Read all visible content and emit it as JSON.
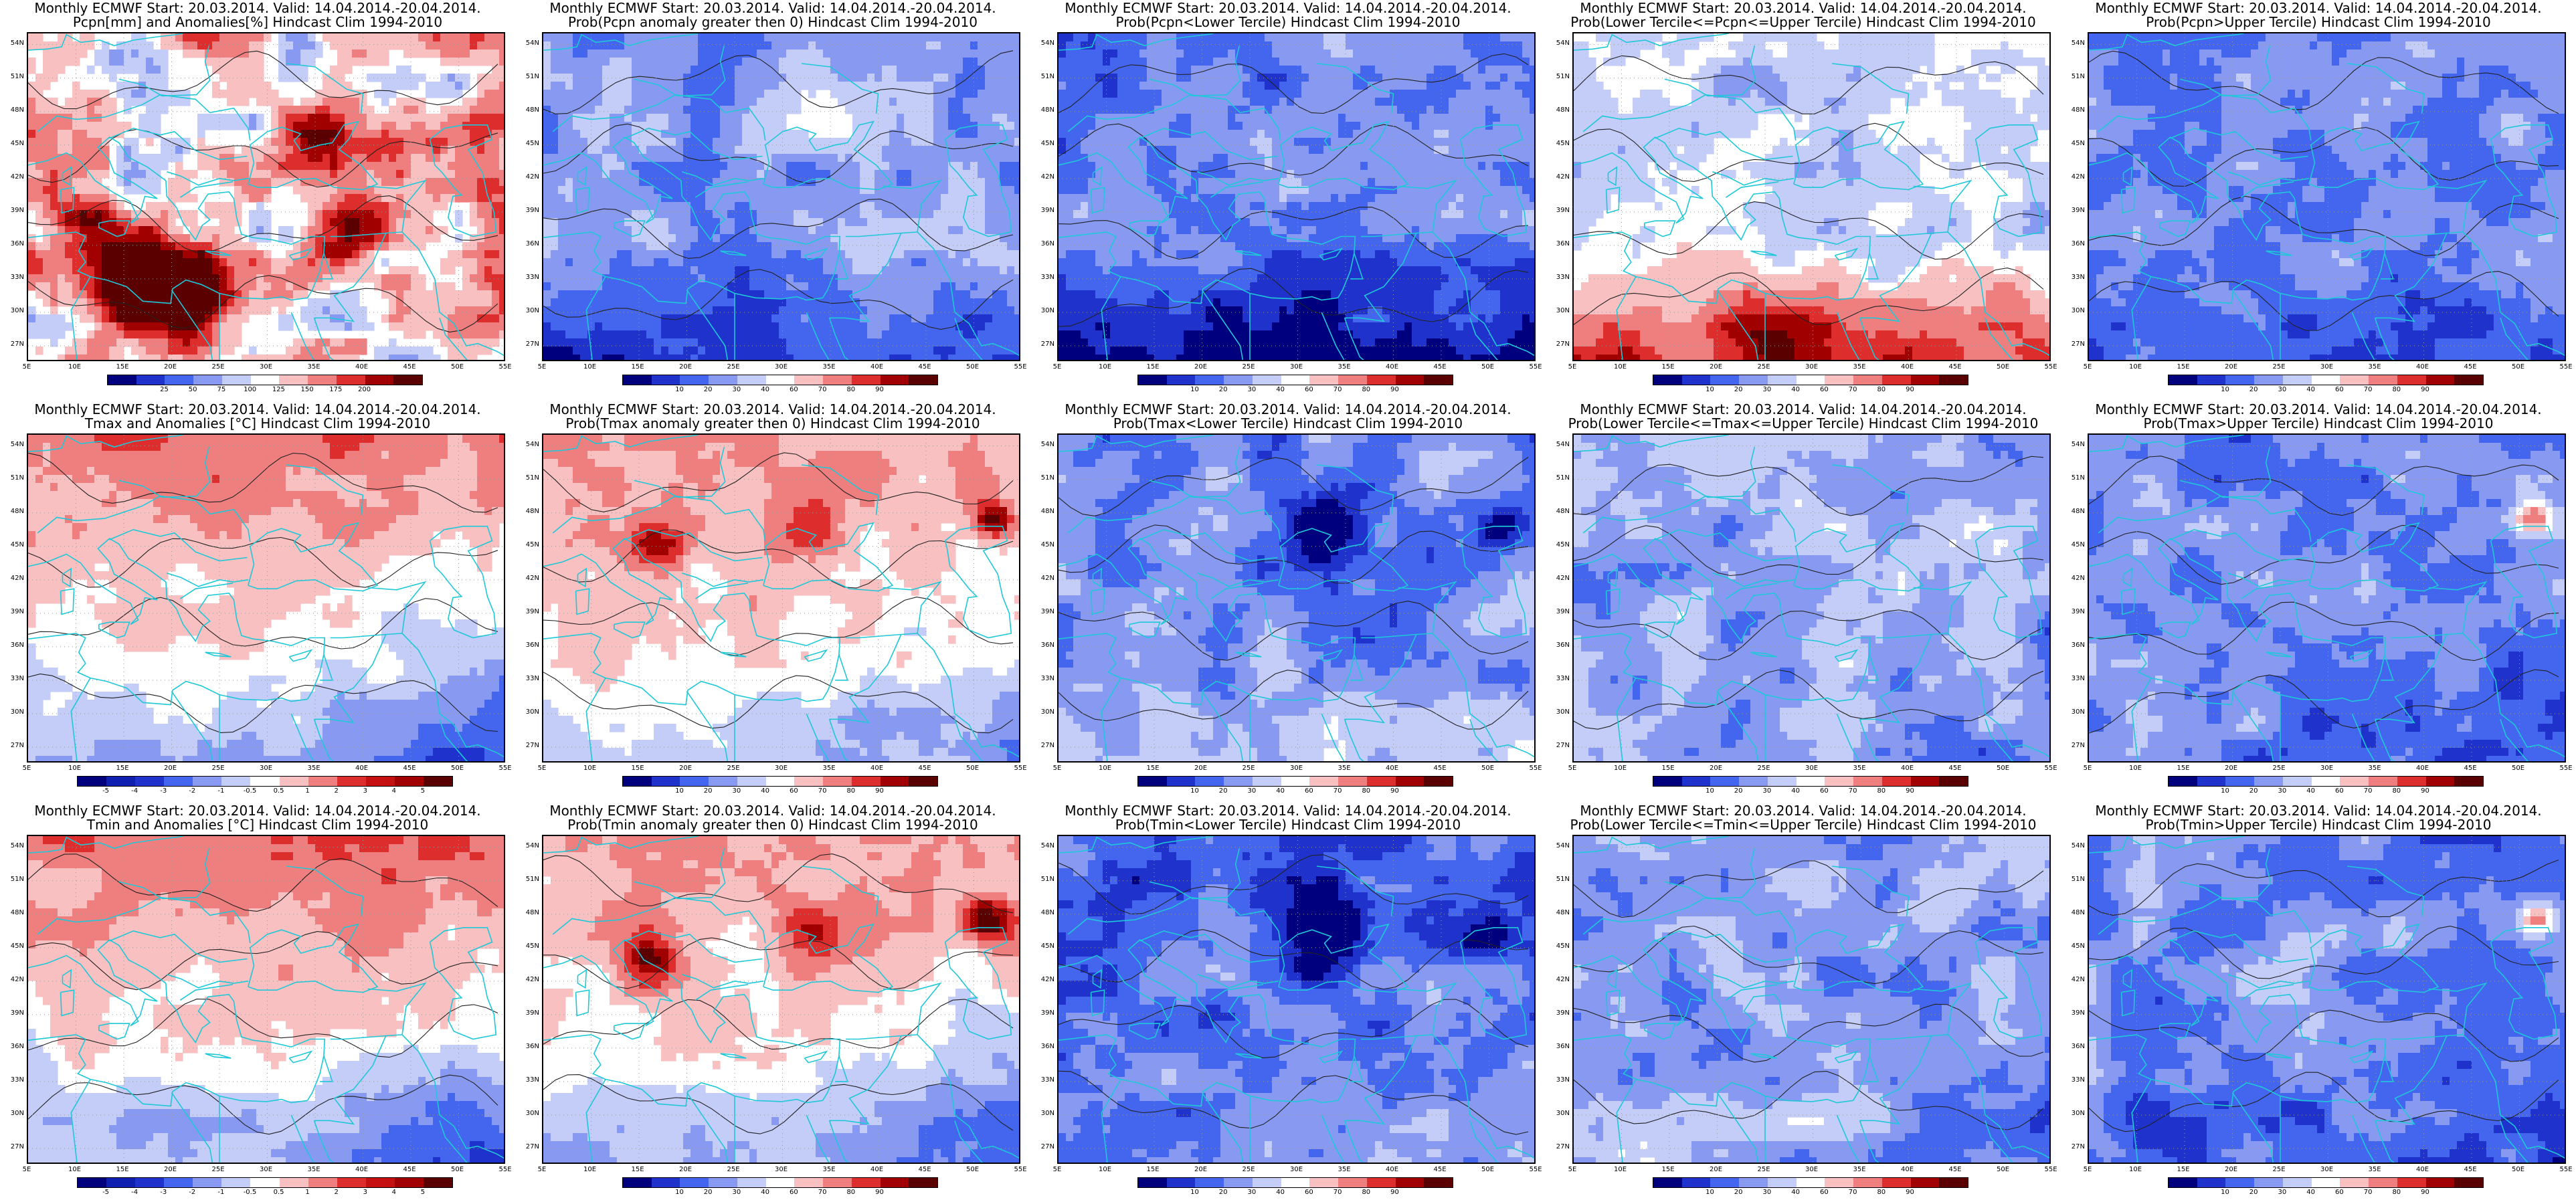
{
  "common": {
    "lat_labels": [
      "54N",
      "51N",
      "48N",
      "45N",
      "42N",
      "39N",
      "36N",
      "33N",
      "30N",
      "27N"
    ],
    "lon_labels": [
      "5E",
      "10E",
      "15E",
      "20E",
      "25E",
      "30E",
      "35E",
      "40E",
      "45E",
      "50E",
      "55E"
    ]
  },
  "colorbars": {
    "prob": {
      "labels": [
        "10",
        "20",
        "30",
        "40",
        "60",
        "70",
        "80",
        "90"
      ],
      "colors": [
        "#00007f",
        "#1f33cc",
        "#4466ee",
        "#8899f2",
        "#c4ccf8",
        "#ffffff",
        "#f8c0c0",
        "#ef7f7f",
        "#dd2d2d",
        "#a00000",
        "#5a0000"
      ]
    },
    "pcpn_anom": {
      "labels": [
        "25",
        "50",
        "75",
        "100",
        "125",
        "150",
        "175",
        "200"
      ],
      "colors": [
        "#00007f",
        "#1f33cc",
        "#4466ee",
        "#8899f2",
        "#c4ccf8",
        "#ffffff",
        "#f8c0c0",
        "#ef7f7f",
        "#dd2d2d",
        "#a00000",
        "#5a0000"
      ]
    },
    "temp_anom": {
      "labels": [
        "-5",
        "-4",
        "-3",
        "-2",
        "-1",
        "-0.5",
        "0.5",
        "1",
        "2",
        "3",
        "4",
        "5"
      ],
      "colors": [
        "#00007f",
        "#0f1fb0",
        "#1f33cc",
        "#4466ee",
        "#8899f2",
        "#c4ccf8",
        "#ffffff",
        "#f8c0c0",
        "#ef7f7f",
        "#dd2d2d",
        "#c41010",
        "#a00000",
        "#5a0000"
      ]
    }
  },
  "panels": [
    {
      "title1": "Monthly ECMWF Start: 20.03.2014. Valid: 14.04.2014.-20.04.2014.",
      "title2": "Pcpn[mm] and Anomalies[%] Hindcast Clim 1994-2010",
      "cbar": "pcpn_anom"
    },
    {
      "title1": "Monthly ECMWF Start: 20.03.2014. Valid: 14.04.2014.-20.04.2014.",
      "title2": "Prob(Pcpn anomaly greater then 0) Hindcast Clim 1994-2010",
      "cbar": "prob"
    },
    {
      "title1": "Monthly ECMWF Start: 20.03.2014. Valid: 14.04.2014.-20.04.2014.",
      "title2": "Prob(Pcpn<Lower Tercile) Hindcast Clim 1994-2010",
      "cbar": "prob"
    },
    {
      "title1": "Monthly ECMWF Start: 20.03.2014. Valid: 14.04.2014.-20.04.2014.",
      "title2": "Prob(Lower Tercile<=Pcpn<=Upper Tercile) Hindcast Clim 1994-2010",
      "cbar": "prob"
    },
    {
      "title1": "Monthly ECMWF Start: 20.03.2014. Valid: 14.04.2014.-20.04.2014.",
      "title2": "Prob(Pcpn>Upper Tercile) Hindcast Clim 1994-2010",
      "cbar": "prob"
    },
    {
      "title1": "Monthly ECMWF Start: 20.03.2014. Valid: 14.04.2014.-20.04.2014.",
      "title2": "Tmax and Anomalies [°C] Hindcast Clim 1994-2010",
      "cbar": "temp_anom"
    },
    {
      "title1": "Monthly ECMWF Start: 20.03.2014. Valid: 14.04.2014.-20.04.2014.",
      "title2": "Prob(Tmax anomaly greater then 0) Hindcast Clim 1994-2010",
      "cbar": "prob"
    },
    {
      "title1": "Monthly ECMWF Start: 20.03.2014. Valid: 14.04.2014.-20.04.2014.",
      "title2": "Prob(Tmax<Lower Tercile) Hindcast Clim 1994-2010",
      "cbar": "prob"
    },
    {
      "title1": "Monthly ECMWF Start: 20.03.2014. Valid: 14.04.2014.-20.04.2014.",
      "title2": "Prob(Lower Tercile<=Tmax<=Upper Tercile) Hindcast Clim 1994-2010",
      "cbar": "prob"
    },
    {
      "title1": "Monthly ECMWF Start: 20.03.2014. Valid: 14.04.2014.-20.04.2014.",
      "title2": "Prob(Tmax>Upper Tercile) Hindcast Clim 1994-2010",
      "cbar": "prob"
    },
    {
      "title1": "Monthly ECMWF Start: 20.03.2014. Valid: 14.04.2014.-20.04.2014.",
      "title2": "Tmin and Anomalies [°C] Hindcast Clim 1994-2010",
      "cbar": "temp_anom"
    },
    {
      "title1": "Monthly ECMWF Start: 20.03.2014. Valid: 14.04.2014.-20.04.2014.",
      "title2": "Prob(Tmin anomaly greater then 0) Hindcast Clim 1994-2010",
      "cbar": "prob"
    },
    {
      "title1": "Monthly ECMWF Start: 20.03.2014. Valid: 14.04.2014.-20.04.2014.",
      "title2": "Prob(Tmin<Lower Tercile) Hindcast Clim 1994-2010",
      "cbar": "prob"
    },
    {
      "title1": "Monthly ECMWF Start: 20.03.2014. Valid: 14.04.2014.-20.04.2014.",
      "title2": "Prob(Lower Tercile<=Tmin<=Upper Tercile) Hindcast Clim 1994-2010",
      "cbar": "prob"
    },
    {
      "title1": "Monthly ECMWF Start: 20.03.2014. Valid: 14.04.2014.-20.04.2014.",
      "title2": "Prob(Tmin>Upper Tercile) Hindcast Clim 1994-2010",
      "cbar": "prob"
    }
  ]
}
